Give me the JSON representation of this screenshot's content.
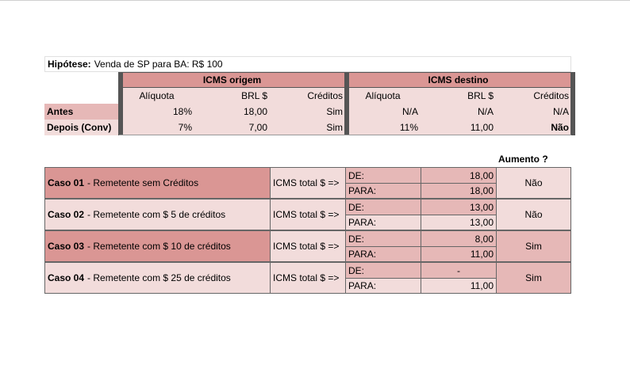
{
  "hypothesis": {
    "label": "Hipótese:",
    "text": "Venda de SP para BA: R$ 100"
  },
  "header": {
    "origem": "ICMS origem",
    "destino": "ICMS destino",
    "columns": [
      "Alíquota",
      "BRL $",
      "Créditos",
      "Alíquota",
      "BRL $",
      "Créditos"
    ]
  },
  "rows": [
    {
      "label": "Antes",
      "cells": [
        "18%",
        "18,00",
        "Sim",
        "N/A",
        "N/A",
        "N/A"
      ]
    },
    {
      "label": "Depois (Conv)",
      "cells": [
        "7%",
        "7,00",
        "Sim",
        "11%",
        "11,00",
        "Não"
      ]
    }
  ],
  "cases_header": "Aumento ?",
  "cases": [
    {
      "id": "Caso 01",
      "description": "- Remetente sem Créditos",
      "total": "ICMS total $ =>",
      "de_label": "DE:",
      "para_label": "PARA:",
      "de": "18,00",
      "para": "18,00",
      "result": "Não"
    },
    {
      "id": "Caso 02",
      "description": "- Remetente com $ 5 de créditos",
      "total": "ICMS total $ =>",
      "de_label": "DE:",
      "para_label": "PARA:",
      "de": "13,00",
      "para": "13,00",
      "result": "Não"
    },
    {
      "id": "Caso 03",
      "description": "- Remetente com $ 10 de créditos",
      "total": "ICMS total $ =>",
      "de_label": "DE:",
      "para_label": "PARA:",
      "de": "8,00",
      "para": "11,00",
      "result": "Sim"
    },
    {
      "id": "Caso 04",
      "description": "- Remetente com $ 25 de créditos",
      "total": "ICMS total $ =>",
      "de_label": "DE:",
      "para_label": "PARA:",
      "de": "-",
      "para": "11,00",
      "result": "Sim"
    }
  ]
}
